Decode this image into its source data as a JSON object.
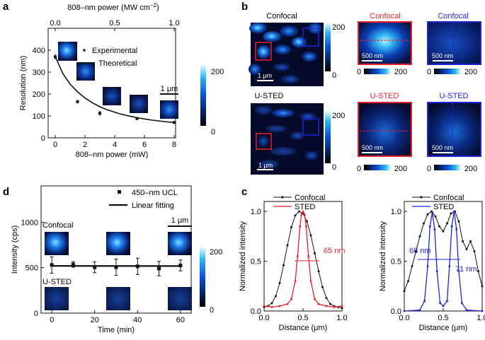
{
  "panels": {
    "a": "a",
    "b": "b",
    "c": "c",
    "d": "d"
  },
  "colors": {
    "accent_red": "#e8212a",
    "accent_blue": "#1f24d6",
    "black": "#111111"
  },
  "chart_data": [
    {
      "id": "a",
      "type": "scatter",
      "xlabel": "808–nm power (mW)",
      "ylabel": "Resolution (nm)",
      "top_label": "808–nm power (MW cm",
      "top_label_exp": "−2",
      "top_label_end": ")",
      "xlim": [
        0,
        8
      ],
      "ylim": [
        0,
        500
      ],
      "top_xlim": [
        0,
        1
      ],
      "xticks": [
        0,
        2,
        4,
        6,
        8
      ],
      "yticks": [
        0,
        100,
        200,
        300,
        400
      ],
      "top_ticks": [
        0.0,
        0.5,
        1.0
      ],
      "top_tick_labels": [
        "0.0",
        "0.5",
        "1.0"
      ],
      "series": [
        {
          "name": "Experimental",
          "x": [
            0,
            1.5,
            3,
            5.5,
            8
          ],
          "y": [
            370,
            165,
            112,
            88,
            70
          ],
          "err": [
            12,
            8,
            12,
            5,
            4
          ]
        },
        {
          "name": "Theoretical",
          "x": [
            0,
            0.5,
            1,
            1.5,
            2,
            2.5,
            3,
            3.5,
            4,
            4.5,
            5,
            5.5,
            6,
            6.5,
            7,
            7.5,
            8
          ],
          "y": [
            372,
            295,
            245,
            210,
            182,
            160,
            142,
            128,
            117,
            107,
            99,
            92,
            86,
            81,
            77,
            73,
            70
          ]
        }
      ],
      "scalebar_label": "1 μm",
      "colorbar_ticks": [
        "200",
        "0"
      ]
    },
    {
      "id": "b",
      "type": "heatmap",
      "labels": {
        "confocal": "Confocal",
        "usted": "U-STED"
      },
      "scalebar_1um": "1 μm",
      "scalebar_500nm": "500 nm",
      "colorbar_ticks": [
        "200",
        "0"
      ],
      "hcolorbar_ticks": [
        "0",
        "200"
      ]
    },
    {
      "id": "c1",
      "type": "line",
      "xlabel": "Distance (μm)",
      "ylabel": "Normalized intensity",
      "xlim": [
        0,
        1
      ],
      "ylim": [
        0,
        1.1
      ],
      "xticks": [
        0.0,
        0.5,
        1.0
      ],
      "xtick_labels": [
        "0.0",
        "0.5",
        "1.0"
      ],
      "yticks": [
        0,
        0.5,
        1.0
      ],
      "ytick_labels": [
        "0.0",
        "0.5",
        "1.0"
      ],
      "series": [
        {
          "name": "Confocal",
          "x": [
            0,
            0.05,
            0.1,
            0.15,
            0.2,
            0.25,
            0.3,
            0.35,
            0.4,
            0.45,
            0.5,
            0.55,
            0.6,
            0.65,
            0.7,
            0.75,
            0.8,
            0.85,
            0.9,
            0.95,
            1.0
          ],
          "y": [
            0.04,
            0.05,
            0.08,
            0.15,
            0.28,
            0.46,
            0.66,
            0.84,
            0.96,
            1.0,
            0.98,
            0.9,
            0.76,
            0.58,
            0.4,
            0.24,
            0.13,
            0.07,
            0.05,
            0.04,
            0.03
          ]
        },
        {
          "name": "STED",
          "x": [
            0,
            0.1,
            0.2,
            0.3,
            0.35,
            0.4,
            0.43,
            0.46,
            0.48,
            0.5,
            0.52,
            0.54,
            0.57,
            0.6,
            0.65,
            0.7,
            0.8,
            0.9,
            1.0
          ],
          "y": [
            0.05,
            0.04,
            0.05,
            0.07,
            0.12,
            0.3,
            0.55,
            0.85,
            0.97,
            1.0,
            0.97,
            0.85,
            0.55,
            0.3,
            0.12,
            0.07,
            0.05,
            0.04,
            0.05
          ]
        }
      ],
      "annotation": "65 nm"
    },
    {
      "id": "c2",
      "type": "line",
      "xlabel": "Distance (μm)",
      "ylabel": "Normalized intensity",
      "xlim": [
        0,
        1
      ],
      "ylim": [
        0,
        1.1
      ],
      "xticks": [
        0.0,
        0.5,
        1.0
      ],
      "xtick_labels": [
        "0.0",
        "0.5",
        "1.0"
      ],
      "yticks": [
        0,
        0.5,
        1.0
      ],
      "ytick_labels": [
        "0.0",
        "0.5",
        "1.0"
      ],
      "series": [
        {
          "name": "Confocal",
          "x": [
            0,
            0.05,
            0.1,
            0.15,
            0.2,
            0.25,
            0.3,
            0.35,
            0.4,
            0.45,
            0.5,
            0.55,
            0.6,
            0.65,
            0.7,
            0.75,
            0.8,
            0.85,
            0.9,
            0.95,
            1.0
          ],
          "y": [
            0.2,
            0.3,
            0.45,
            0.6,
            0.75,
            0.88,
            0.97,
            1.0,
            0.95,
            0.85,
            0.8,
            0.88,
            0.98,
            1.0,
            0.9,
            0.7,
            0.62,
            0.7,
            0.6,
            0.4,
            0.25
          ]
        },
        {
          "name": "STED",
          "x": [
            0,
            0.2,
            0.26,
            0.3,
            0.33,
            0.36,
            0.39,
            0.42,
            0.46,
            0.5,
            0.55,
            0.58,
            0.61,
            0.64,
            0.67,
            0.7,
            0.74,
            0.8,
            1.0
          ],
          "y": [
            0.0,
            0.01,
            0.1,
            0.45,
            0.85,
            0.99,
            0.82,
            0.4,
            0.08,
            0.05,
            0.1,
            0.45,
            0.85,
            1.0,
            0.82,
            0.4,
            0.08,
            0.01,
            0.0
          ]
        }
      ],
      "annotation_left": "68 nm",
      "annotation_right": "71 nm"
    },
    {
      "id": "d",
      "type": "scatter",
      "xlabel": "Time (min)",
      "ylabel": "Intensity (cps)",
      "xlim": [
        -5,
        65
      ],
      "ylim": [
        0,
        1400
      ],
      "xticks": [
        0,
        20,
        40,
        60
      ],
      "yticks": [
        0,
        500,
        1000
      ],
      "series": [
        {
          "name": "450–nm UCL",
          "x": [
            0,
            10,
            20,
            30,
            40,
            50,
            60
          ],
          "y": [
            530,
            535,
            505,
            505,
            515,
            490,
            525
          ],
          "err": [
            90,
            30,
            60,
            90,
            90,
            80,
            60
          ]
        },
        {
          "name": "Linear fitting",
          "x": [
            0,
            60
          ],
          "y": [
            520,
            518
          ]
        }
      ],
      "labels": {
        "confocal": "Confocal",
        "usted": "U-STED"
      },
      "scalebar_label": "1 μm",
      "colorbar_ticks": [
        "200",
        "0"
      ]
    }
  ]
}
